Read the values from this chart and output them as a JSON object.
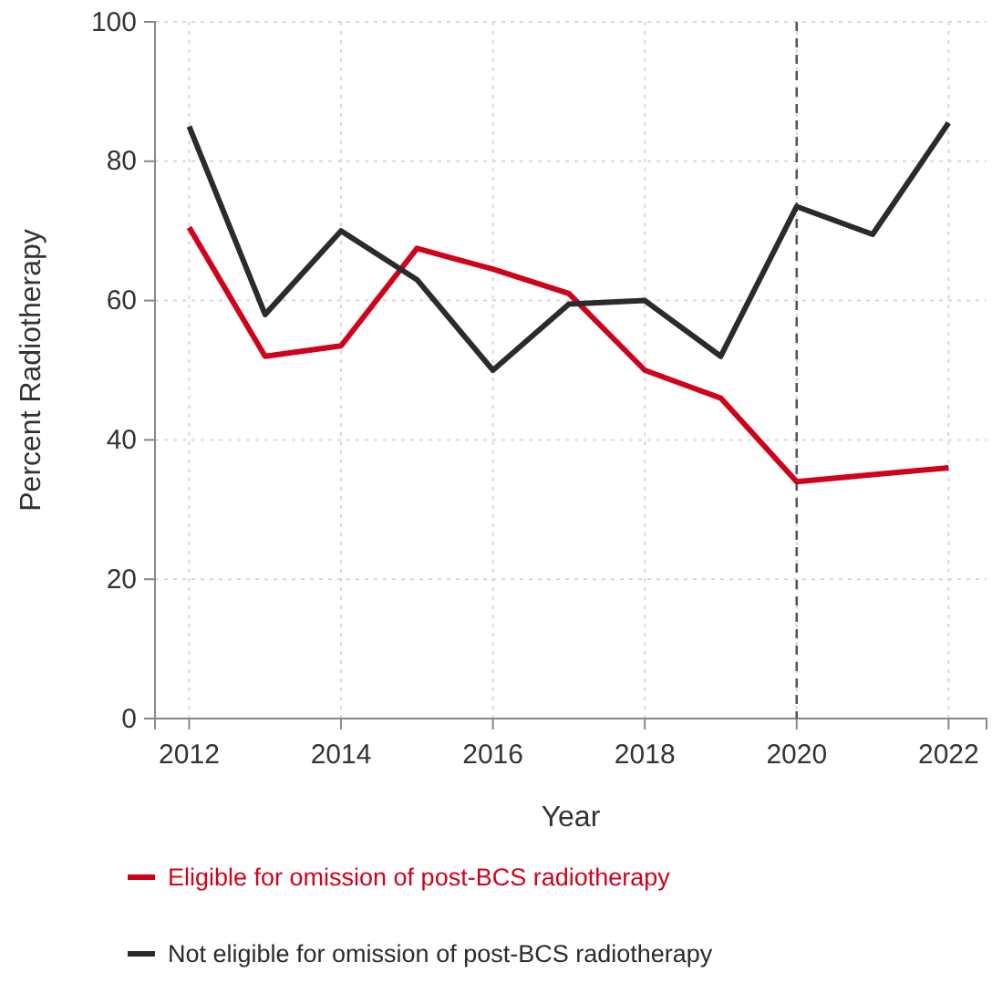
{
  "chart_data": {
    "type": "line",
    "xlabel": "Year",
    "ylabel": "Percent Radiotherapy",
    "x": [
      2012,
      2013,
      2014,
      2015,
      2016,
      2017,
      2018,
      2019,
      2020,
      2021,
      2022
    ],
    "series": [
      {
        "name": "Eligible for omission of post-BCS radiotherapy",
        "color": "#d0021b",
        "values": [
          70.5,
          52,
          53.5,
          67.5,
          64.5,
          61,
          50,
          46,
          34,
          35,
          36
        ]
      },
      {
        "name": "Not eligible for omission of post-BCS radiotherapy",
        "color": "#2b2b2b",
        "values": [
          85,
          58,
          70,
          63,
          50,
          59.5,
          60,
          52,
          73.5,
          69.5,
          85.5
        ]
      }
    ],
    "xlim": [
      2011.55,
      2022.5
    ],
    "xticks": [
      2012,
      2014,
      2016,
      2018,
      2020,
      2022
    ],
    "ylim": [
      0,
      100
    ],
    "yticks": [
      0,
      20,
      40,
      60,
      80,
      100
    ],
    "grid": true,
    "legend": "bottom",
    "marker": "none",
    "line_style": "solid",
    "ref_lines": [
      {
        "axis": "x",
        "value": 2020,
        "label": null,
        "color": "#555555",
        "line_style": "dashed"
      }
    ]
  }
}
